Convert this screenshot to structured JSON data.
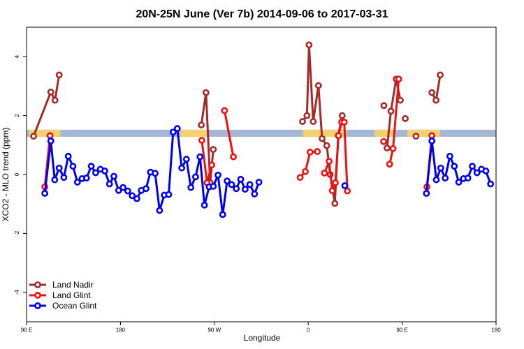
{
  "chart_data": {
    "type": "line",
    "title": "20N-25N June (Ver 7b)   2014-09-06 to 2017-03-31",
    "xlabel": "Longitude",
    "ylabel": "XCO2 - MLO trend (ppm)",
    "xlim": [
      90,
      450
    ],
    "ylim": [
      -5,
      5
    ],
    "x_ticks": [
      {
        "value": 90,
        "label": "90 E"
      },
      {
        "value": 162,
        "label": "180"
      },
      {
        "value": 234,
        "label": "90 W"
      },
      {
        "value": 306,
        "label": "0"
      },
      {
        "value": 378,
        "label": "90 E"
      },
      {
        "value": 450,
        "label": "180"
      }
    ],
    "y_ticks": [
      {
        "value": -4,
        "label": "-4"
      },
      {
        "value": -2,
        "label": "-2"
      },
      {
        "value": 0,
        "label": "0"
      },
      {
        "value": 2,
        "label": "2"
      },
      {
        "value": 4,
        "label": "4"
      }
    ],
    "grid": false,
    "legend_position": "bottom-left",
    "surface_band": {
      "y_range": [
        1.28,
        1.52
      ],
      "ocean_color": "#a4b8d6",
      "land_color": "#f5d06e",
      "land_segments": [
        [
          92,
          116
        ],
        [
          208,
          229
        ],
        [
          302,
          335
        ],
        [
          357,
          372
        ],
        [
          382,
          407
        ]
      ]
    },
    "series": [
      {
        "name": "Land Nadir",
        "color": "#a52a2a",
        "points": [
          [
            95.4,
            1.3
          ],
          [
            108.6,
            2.8
          ],
          [
            111.8,
            2.52
          ],
          [
            115.0,
            3.38
          ],
          [
            null,
            null
          ],
          [
            224.0,
            1.68
          ],
          [
            227.6,
            2.78
          ],
          [
            230.8,
            -0.28
          ],
          [
            233.2,
            0.85
          ],
          [
            null,
            null
          ],
          [
            301.6,
            1.8
          ],
          [
            305.0,
            2.0
          ],
          [
            306.6,
            4.4
          ],
          [
            309.8,
            1.8
          ],
          [
            313.8,
            3.02
          ],
          [
            316.6,
            1.22
          ],
          [
            320.2,
            0.98
          ],
          [
            322.8,
            0.0
          ],
          [
            326.4,
            -0.98
          ],
          [
            329.0,
            1.32
          ],
          [
            332.0,
            2.0
          ],
          [
            null,
            null
          ],
          [
            366.4,
            0.9
          ],
          [
            369.4,
            2.15
          ],
          [
            373.4,
            3.24
          ],
          [
            376.6,
            2.52
          ],
          [
            null,
            null
          ],
          [
            400.8,
            2.78
          ],
          [
            404.0,
            2.52
          ],
          [
            407.2,
            3.38
          ],
          [
            null,
            null
          ],
          [
            364.0,
            2.34
          ],
          [
            null,
            null
          ],
          [
            380.4,
            1.9
          ],
          [
            null,
            null
          ],
          [
            388.6,
            1.3
          ]
        ]
      },
      {
        "name": "Land Glint",
        "color": "#ee1111",
        "points": [
          [
            104.0,
            -0.42
          ],
          [
            108.0,
            1.32
          ],
          [
            null,
            null
          ],
          [
            224.4,
            1.16
          ],
          [
            228.4,
            -0.28
          ],
          [
            232.0,
            0.32
          ],
          [
            null,
            null
          ],
          [
            241.8,
            2.17
          ],
          [
            248.6,
            0.6
          ],
          [
            null,
            null
          ],
          [
            299.8,
            -0.1
          ],
          [
            303.8,
            0.1
          ],
          [
            307.4,
            0.76
          ],
          [
            313.0,
            0.78
          ],
          [
            null,
            null
          ],
          [
            318.4,
            0.05
          ],
          [
            322.0,
            0.45
          ],
          [
            324.4,
            -0.55
          ],
          [
            326.8,
            -0.28
          ],
          [
            329.2,
            1.32
          ],
          [
            331.6,
            1.78
          ],
          [
            333.6,
            1.78
          ],
          [
            336.0,
            -0.56
          ],
          [
            null,
            null
          ],
          [
            363.8,
            1.12
          ],
          [
            null,
            null
          ],
          [
            368.4,
            0.35
          ],
          [
            371.0,
            0.88
          ],
          [
            375.4,
            3.24
          ],
          [
            null,
            null
          ],
          [
            397.0,
            -0.42
          ],
          [
            400.8,
            1.32
          ]
        ]
      },
      {
        "name": "Ocean Glint",
        "color": "#0000ee",
        "points": [
          [
            104.0,
            -0.64
          ],
          [
            108.6,
            1.14
          ],
          [
            111.6,
            -0.18
          ],
          [
            115.0,
            0.22
          ],
          [
            118.6,
            -0.1
          ],
          [
            122.0,
            0.62
          ],
          [
            125.6,
            0.28
          ],
          [
            129.0,
            -0.26
          ],
          [
            132.6,
            -0.14
          ],
          [
            136.0,
            -0.12
          ],
          [
            139.6,
            0.28
          ],
          [
            143.0,
            0.06
          ],
          [
            146.6,
            0.18
          ],
          [
            150.0,
            0.12
          ],
          [
            153.6,
            -0.32
          ],
          [
            157.0,
            -0.06
          ],
          [
            160.6,
            -0.54
          ],
          [
            164.0,
            -0.44
          ],
          [
            167.6,
            -0.56
          ],
          [
            171.0,
            -0.72
          ],
          [
            174.6,
            -0.82
          ],
          [
            178.0,
            -0.54
          ],
          [
            181.6,
            -0.48
          ],
          [
            185.0,
            0.08
          ],
          [
            188.6,
            0.04
          ],
          [
            192.0,
            -1.22
          ],
          [
            195.6,
            -0.7
          ],
          [
            199.0,
            -0.68
          ],
          [
            202.4,
            1.44
          ],
          [
            205.6,
            1.56
          ],
          [
            209.0,
            0.22
          ],
          [
            212.6,
            0.52
          ],
          [
            216.0,
            -0.44
          ],
          [
            219.6,
            -0.08
          ],
          [
            223.0,
            0.6
          ],
          [
            226.4,
            -1.04
          ],
          [
            230.0,
            -0.42
          ],
          [
            233.2,
            -0.4
          ],
          [
            236.8,
            -0.02
          ],
          [
            240.4,
            -1.36
          ],
          [
            243.8,
            -0.22
          ],
          [
            247.2,
            -0.34
          ],
          [
            250.8,
            -0.48
          ],
          [
            254.2,
            -0.16
          ],
          [
            257.6,
            -0.5
          ],
          [
            261.2,
            -0.34
          ],
          [
            264.8,
            -0.66
          ],
          [
            268.2,
            -0.26
          ],
          [
            null,
            null
          ],
          [
            334.0,
            -0.38
          ],
          [
            null,
            null
          ],
          [
            396.6,
            -0.64
          ],
          [
            400.8,
            1.14
          ],
          [
            404.2,
            -0.18
          ],
          [
            407.6,
            0.22
          ],
          [
            411.0,
            -0.12
          ],
          [
            414.6,
            0.62
          ],
          [
            418.0,
            0.28
          ],
          [
            421.4,
            -0.26
          ],
          [
            425.0,
            -0.14
          ],
          [
            428.4,
            -0.12
          ],
          [
            431.8,
            0.28
          ],
          [
            435.4,
            0.06
          ],
          [
            438.8,
            0.18
          ],
          [
            442.2,
            0.12
          ],
          [
            445.8,
            -0.32
          ]
        ]
      }
    ]
  }
}
